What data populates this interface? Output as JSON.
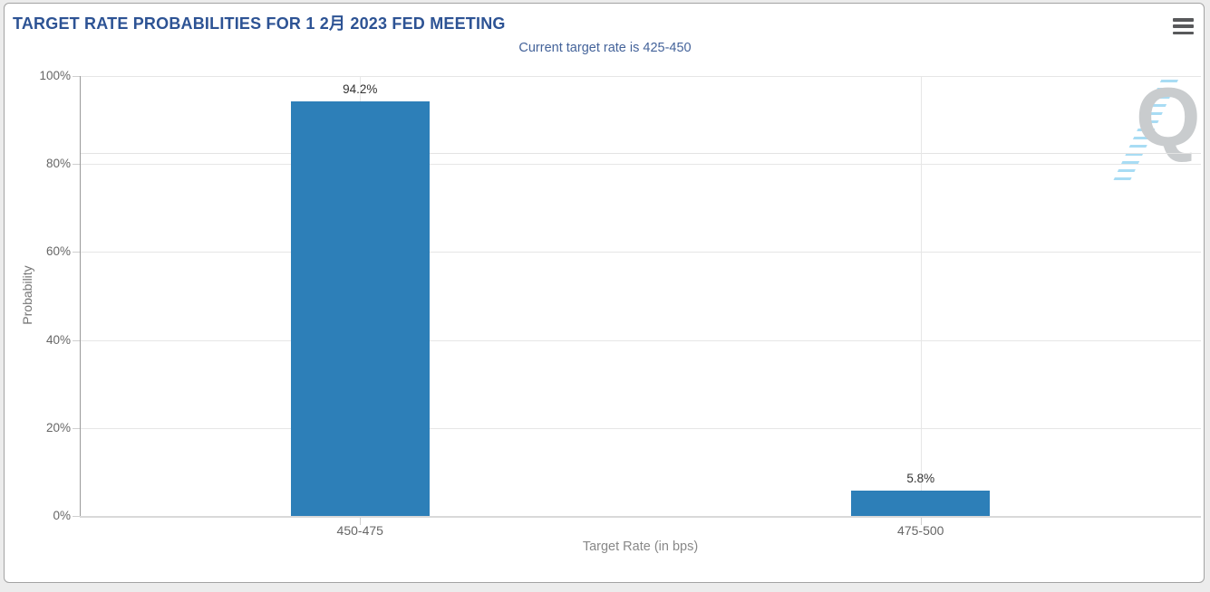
{
  "page": {
    "background": "#ececec",
    "card_border": "#a3a3a3"
  },
  "header": {
    "menu_icon": "hamburger-icon"
  },
  "watermark": {
    "letter": "Q",
    "letter_color": "#c9ccce",
    "stripe_color": "#a8dcf4"
  },
  "chart_data": {
    "type": "bar",
    "title": "TARGET RATE PROBABILITIES FOR 1 2月 2023 FED MEETING",
    "subtitle": "Current target rate is 425-450",
    "categories": [
      "450-475",
      "475-500"
    ],
    "values": [
      94.2,
      5.8
    ],
    "value_labels": [
      "94.2%",
      "5.8%"
    ],
    "xlabel": "Target Rate (in bps)",
    "ylabel": "Probability",
    "ylim": [
      0,
      100
    ],
    "ytick_step": 20,
    "ytick_labels": [
      "0%",
      "20%",
      "40%",
      "60%",
      "80%",
      "100%"
    ],
    "grid": true,
    "legend": "none",
    "bar_color": "#2d7fb8",
    "extra_gridline_value": 82.5,
    "title_color": "#2d5394",
    "subtitle_color": "#44639a",
    "axis_label_color": "#666666",
    "axis_title_color": "#888888"
  }
}
